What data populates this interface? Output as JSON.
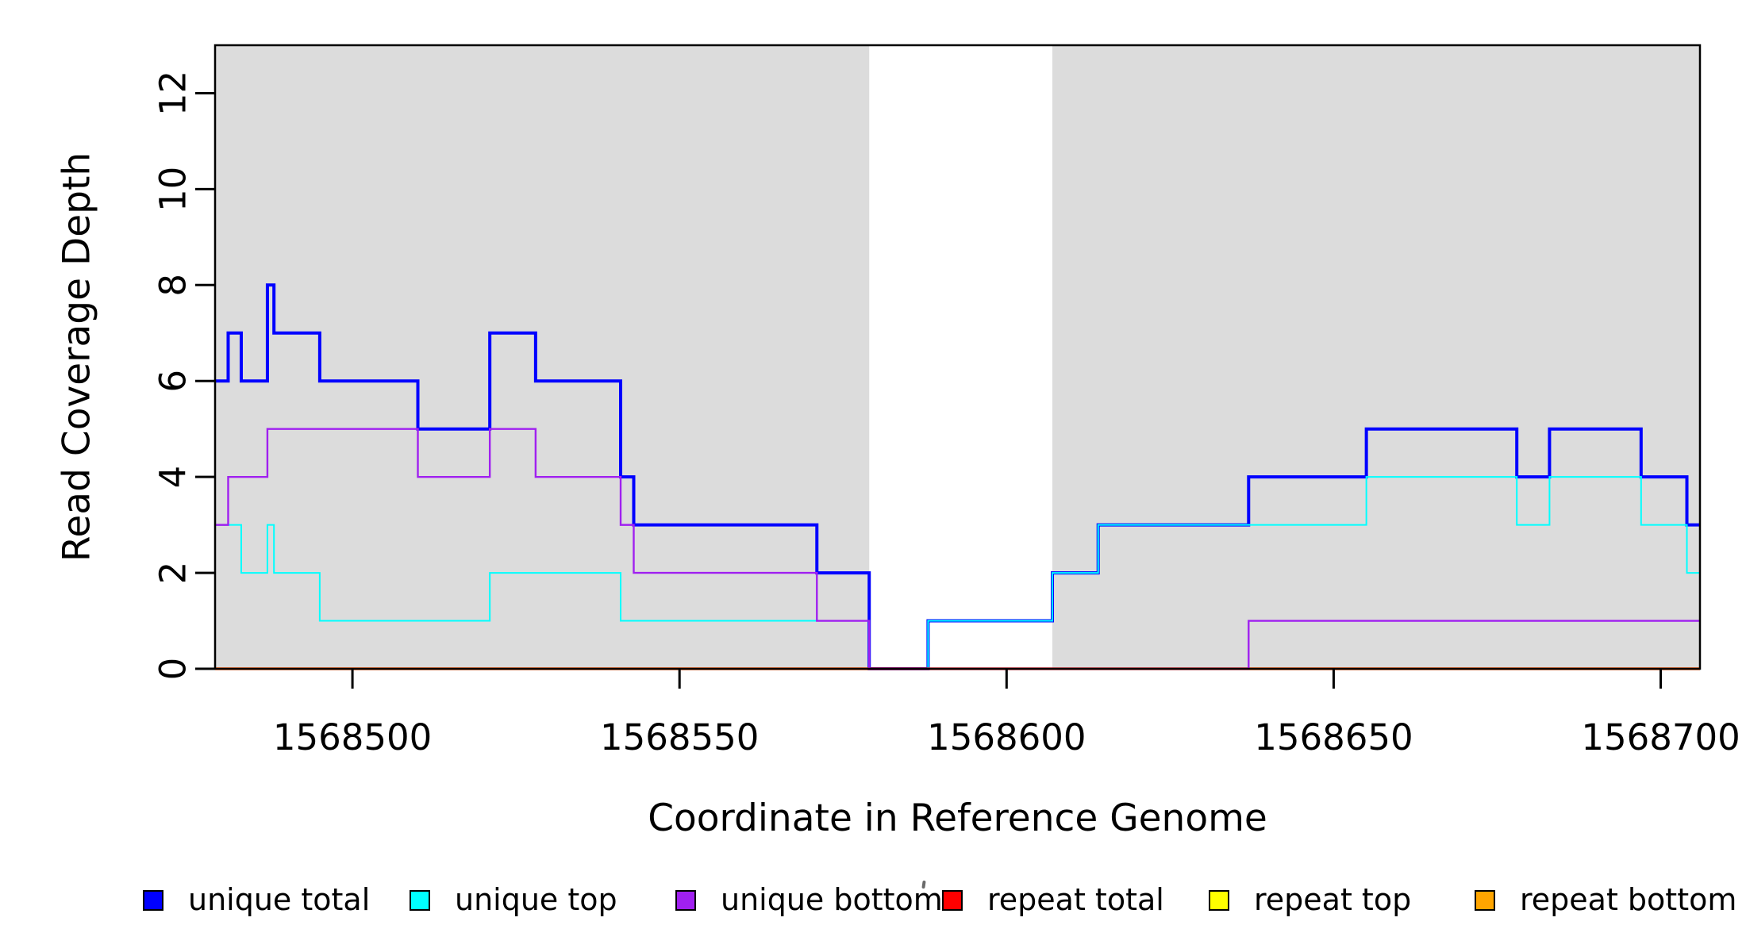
{
  "chart_data": {
    "type": "line",
    "line_style": "step",
    "title": "",
    "xlabel": "Coordinate in Reference Genome",
    "ylabel": "Read Coverage Depth",
    "xlim": [
      1568479,
      1568706
    ],
    "ylim": [
      0,
      13
    ],
    "xticks": [
      1568500,
      1568550,
      1568600,
      1568650,
      1568700
    ],
    "yticks": [
      0,
      2,
      4,
      6,
      8,
      10,
      12
    ],
    "grid": false,
    "background": "#ffffff",
    "box_color": "#000000",
    "shaded_regions": [
      {
        "x0": 1568479,
        "x1": 1568579,
        "color": "#DCDCDC"
      },
      {
        "x0": 1568607,
        "x1": 1568706,
        "color": "#DCDCDC"
      }
    ],
    "x_end": 1568706,
    "series": [
      {
        "name": "unique total",
        "color": "#0000FF",
        "width": 4,
        "steps": [
          [
            1568479,
            6
          ],
          [
            1568481,
            7
          ],
          [
            1568483,
            6
          ],
          [
            1568487,
            8
          ],
          [
            1568488,
            7
          ],
          [
            1568495,
            6
          ],
          [
            1568510,
            5
          ],
          [
            1568521,
            7
          ],
          [
            1568528,
            6
          ],
          [
            1568541,
            4
          ],
          [
            1568543,
            3
          ],
          [
            1568571,
            2
          ],
          [
            1568579,
            0
          ],
          [
            1568588,
            1
          ],
          [
            1568607,
            2
          ],
          [
            1568614,
            3
          ],
          [
            1568637,
            4
          ],
          [
            1568655,
            5
          ],
          [
            1568678,
            4
          ],
          [
            1568683,
            5
          ],
          [
            1568697,
            4
          ],
          [
            1568704,
            3
          ]
        ]
      },
      {
        "name": "unique top",
        "color": "#00FFFF",
        "width": 2,
        "steps": [
          [
            1568479,
            3
          ],
          [
            1568483,
            2
          ],
          [
            1568487,
            3
          ],
          [
            1568488,
            2
          ],
          [
            1568495,
            1
          ],
          [
            1568521,
            2
          ],
          [
            1568541,
            1
          ],
          [
            1568579,
            0
          ],
          [
            1568588,
            1
          ],
          [
            1568607,
            2
          ],
          [
            1568614,
            3
          ],
          [
            1568655,
            4
          ],
          [
            1568678,
            3
          ],
          [
            1568683,
            4
          ],
          [
            1568697,
            3
          ],
          [
            1568704,
            2
          ]
        ]
      },
      {
        "name": "repeat total",
        "color": "#FF0000",
        "width": 3.5,
        "steps": [
          [
            1568479,
            0
          ]
        ]
      },
      {
        "name": "repeat top",
        "color": "#FFFF00",
        "width": 2.5,
        "steps": [
          [
            1568479,
            0
          ]
        ]
      },
      {
        "name": "repeat bottom",
        "color": "#FFA500",
        "width": 3,
        "steps": [
          [
            1568479,
            0
          ]
        ]
      },
      {
        "name": "unique bottom",
        "color": "#A020F0",
        "width": 2.4,
        "steps": [
          [
            1568479,
            3
          ],
          [
            1568481,
            4
          ],
          [
            1568487,
            5
          ],
          [
            1568510,
            4
          ],
          [
            1568521,
            5
          ],
          [
            1568528,
            4
          ],
          [
            1568541,
            3
          ],
          [
            1568543,
            2
          ],
          [
            1568571,
            1
          ],
          [
            1568579,
            0
          ],
          [
            1568637,
            1
          ]
        ]
      }
    ]
  },
  "legend": {
    "items": [
      {
        "label": "unique total",
        "color": "#0000FF"
      },
      {
        "label": "unique top",
        "color": "#00FFFF"
      },
      {
        "label": "unique bottom",
        "color": "#A020F0"
      },
      {
        "label": "repeat total",
        "color": "#FF0000"
      },
      {
        "label": "repeat top",
        "color": "#FFFF00"
      },
      {
        "label": "repeat bottom",
        "color": "#FFA500"
      }
    ]
  }
}
